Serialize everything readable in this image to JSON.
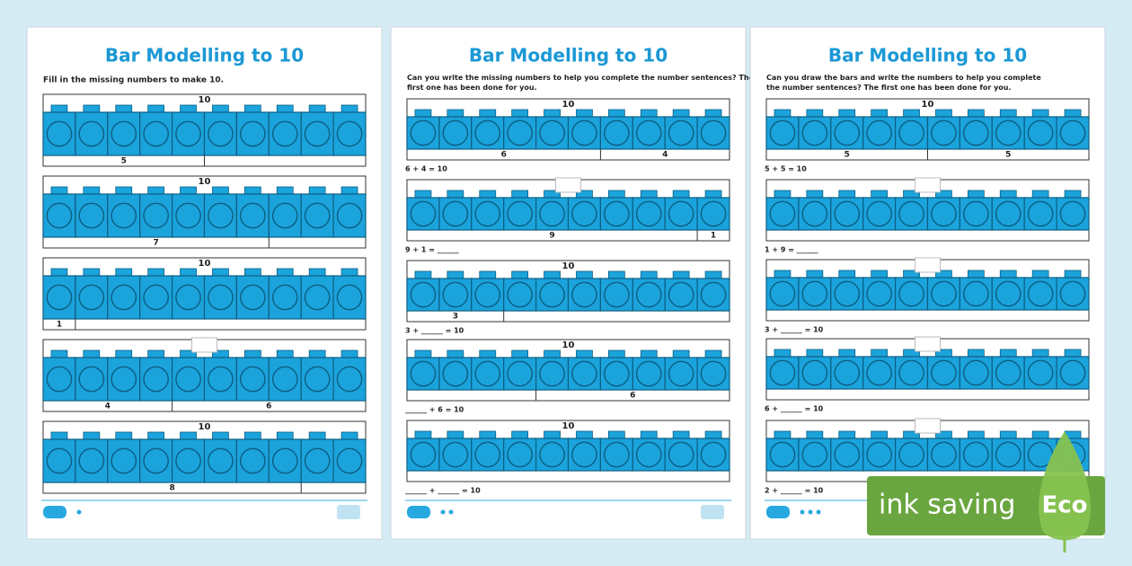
{
  "pages": [
    {
      "title": "Bar Modelling to 10",
      "instruction": "Fill in the missing numbers to make 10.",
      "rows": [
        {
          "top": "10",
          "bottom": [
            "5"
          ]
        },
        {
          "top": "10",
          "bottom": [
            "7"
          ]
        },
        {
          "top": "10",
          "bottom": [
            "1"
          ]
        },
        {
          "bottom": [
            "4",
            "6"
          ]
        },
        {
          "top": "10",
          "bottom": [
            "8"
          ]
        }
      ]
    },
    {
      "title": "Bar Modelling to 10",
      "instruction": "Can you write the missing numbers to help you complete the number sentences? The first one has been done for you.",
      "rows": [
        {
          "top": "10",
          "bottom": [
            "6",
            "4"
          ],
          "sentence": "6 + 4 = 10"
        },
        {
          "bottom": [
            "9",
            "1"
          ],
          "sentence": "9 + 1 = ______"
        },
        {
          "top": "10",
          "bottom": [
            "3"
          ],
          "sentence": "3 + ______ = 10"
        },
        {
          "top": "10",
          "bottom": [
            "6"
          ],
          "sentence": "______ + 6 = 10"
        },
        {
          "top": "10",
          "sentence": "______ + ______ = 10"
        }
      ]
    },
    {
      "title": "Bar Modelling to 10",
      "instruction": "Can you draw the bars and write the numbers to help you complete the number sentences? The first one has been done for you.",
      "rows": [
        {
          "top": "10",
          "bottom": [
            "5",
            "5"
          ],
          "sentence": "5 + 5 = 10"
        },
        {
          "sentence": "1 + 9 = ______"
        },
        {
          "sentence": "3 + ______ = 10"
        },
        {
          "sentence": "6 + ______ = 10"
        },
        {
          "sentence": "2 + ______ = 10"
        }
      ]
    }
  ],
  "badge": {
    "text": "ink saving",
    "tag": "Eco"
  }
}
